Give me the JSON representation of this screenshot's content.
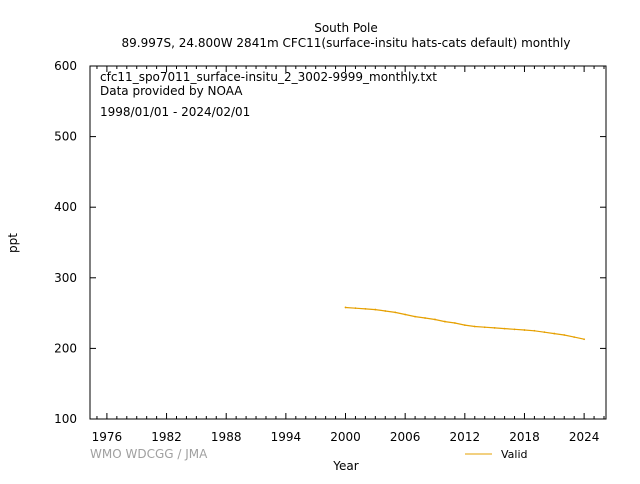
{
  "chart_data": {
    "type": "line",
    "title": "South Pole",
    "subtitle": "89.997S, 24.800W 2841m    CFC11(surface-insitu hats-cats default) monthly",
    "xlabel": "Year",
    "ylabel": "ppt",
    "xlim": [
      1974.3,
      2026.2
    ],
    "ylim": [
      100,
      600
    ],
    "xticks": [
      1976,
      1982,
      1988,
      1994,
      2000,
      2006,
      2012,
      2018,
      2024
    ],
    "yticks": [
      100,
      200,
      300,
      400,
      500,
      600
    ],
    "grid": false,
    "legend": "bottom-right",
    "info_lines": [
      "cfc11_spo7011_surface-insitu_2_3002-9999_monthly.txt",
      "Data provided by NOAA",
      "1998/01/01 - 2024/02/01"
    ],
    "watermark": "WMO WDCGG / JMA",
    "series": [
      {
        "name": "Valid",
        "color": "#e6a000",
        "x": [
          2000.0,
          2001.0,
          2002.0,
          2003.0,
          2004.0,
          2005.0,
          2006.0,
          2007.0,
          2008.0,
          2009.0,
          2010.0,
          2011.0,
          2012.0,
          2013.0,
          2014.0,
          2015.0,
          2016.0,
          2017.0,
          2018.0,
          2019.0,
          2020.0,
          2021.0,
          2022.0,
          2023.0,
          2024.0
        ],
        "y": [
          258,
          257,
          256,
          255,
          253,
          251,
          248,
          245,
          243,
          241,
          238,
          236,
          233,
          231,
          230,
          229,
          228,
          227,
          226,
          225,
          223,
          221,
          219,
          216,
          213
        ]
      }
    ]
  }
}
